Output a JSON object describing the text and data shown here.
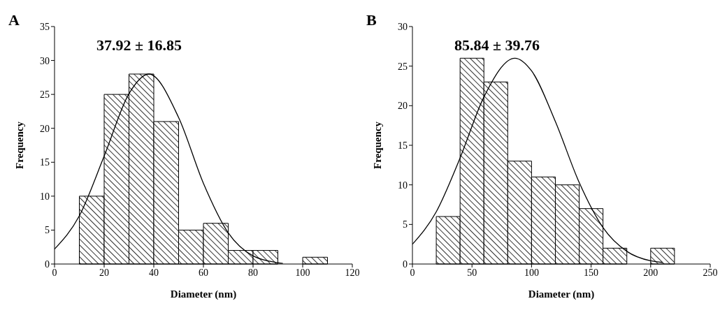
{
  "chart_data": [
    {
      "type": "histogram",
      "title": "A",
      "xlabel": "Diameter (nm)",
      "ylabel": "Frequency",
      "annotations": [
        "37.92 ± 16.85"
      ],
      "bins": [
        10,
        20,
        30,
        40,
        50,
        60,
        70,
        80,
        90,
        100,
        110
      ],
      "values": [
        10,
        25,
        28,
        21,
        5,
        6,
        2,
        2,
        0,
        1
      ],
      "color": "#000000",
      "xlim": [
        0,
        120
      ],
      "xticks": [
        0,
        20,
        40,
        60,
        80,
        100,
        120
      ],
      "ylim": [
        0,
        35
      ],
      "yticks": [
        0,
        5,
        10,
        15,
        20,
        25,
        30,
        35
      ],
      "series": [
        {
          "type": "line",
          "color": "#000000",
          "x": [
            0,
            10,
            20,
            30,
            38,
            50,
            60,
            70,
            80,
            90,
            92
          ],
          "values": [
            2.2,
            7.1,
            15.9,
            25.1,
            28,
            21.6,
            11.9,
            4.6,
            1.2,
            0.2,
            0.1
          ]
        }
      ]
    },
    {
      "type": "histogram",
      "title": "B",
      "xlabel": "Diameter (nm)",
      "ylabel": "Frequency",
      "annotations": [
        "85.84 ± 39.76"
      ],
      "bins": [
        20,
        40,
        60,
        80,
        100,
        120,
        140,
        160,
        180,
        200,
        220
      ],
      "values": [
        6,
        26,
        23,
        13,
        11,
        10,
        7,
        2,
        0,
        2
      ],
      "color": "#000000",
      "xlim": [
        0,
        250
      ],
      "xticks": [
        0,
        50,
        100,
        150,
        200,
        250
      ],
      "ylim": [
        0,
        30
      ],
      "yticks": [
        0,
        5,
        10,
        15,
        20,
        25,
        30
      ],
      "series": [
        {
          "type": "line",
          "color": "#000000",
          "x": [
            0,
            20,
            40,
            60,
            86,
            100,
            120,
            140,
            160,
            180,
            200,
            210
          ],
          "values": [
            2.5,
            6.6,
            13.4,
            21.1,
            26,
            24.4,
            18,
            10.3,
            4.6,
            1.6,
            0.4,
            0.2
          ]
        }
      ]
    }
  ]
}
